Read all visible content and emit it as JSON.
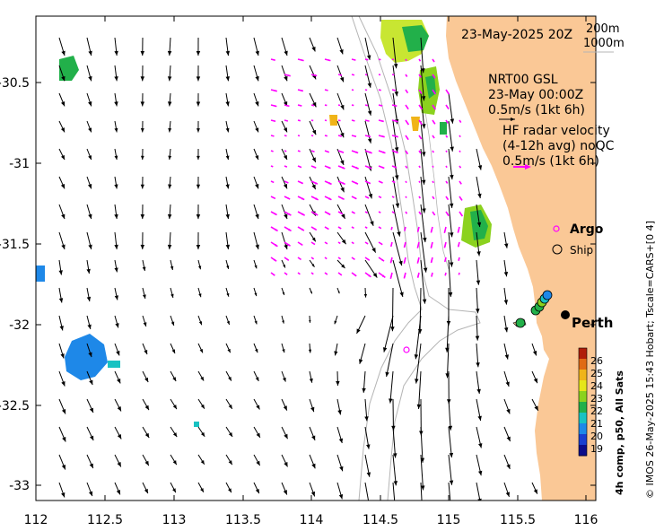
{
  "map": {
    "date_label": "23-May-2025 20Z",
    "depth_contours": [
      "200m",
      "1000m"
    ],
    "model_label": [
      "NRT00 GSL",
      "23-May 00:00Z",
      "0.5m/s (1kt 6h)"
    ],
    "radar_label": [
      "HF radar velocity",
      "(4-12h avg) noQC",
      "0.5m/s (1kt 6h)"
    ],
    "legend": {
      "argo": "Argo",
      "ship": "Ship"
    },
    "city": "Perth",
    "colorbar": {
      "title": "4h comp, p50, All Sats",
      "ticks": [
        "26",
        "25",
        "24",
        "23",
        "22",
        "21",
        "20",
        "19"
      ],
      "range": [
        19,
        26
      ],
      "colors": [
        "#0c0c8a",
        "#1a3fd0",
        "#1e88e8",
        "#19c2c2",
        "#22b04a",
        "#8bd21e",
        "#e6e619",
        "#f0b419",
        "#e06a14",
        "#b01e0a"
      ]
    },
    "credit": "© IMOS 26-May-2025 15:43 Hobart; Tscale=CARS+[0 4]",
    "x_ticks": [
      "112",
      "112.5",
      "113",
      "113.5",
      "114",
      "114.5",
      "115",
      "115.5",
      "116"
    ],
    "y_ticks": [
      "-30.5",
      "-31",
      "-31.5",
      "-32",
      "-32.5",
      "-33"
    ],
    "lon_range": [
      112,
      116.3
    ],
    "lat_range": [
      -30.05,
      -33.15
    ],
    "colors": {
      "land": "#fac896",
      "radar_vector": "#ff00ff",
      "model_vector": "#000000",
      "contour": "#b4b4b4"
    }
  }
}
